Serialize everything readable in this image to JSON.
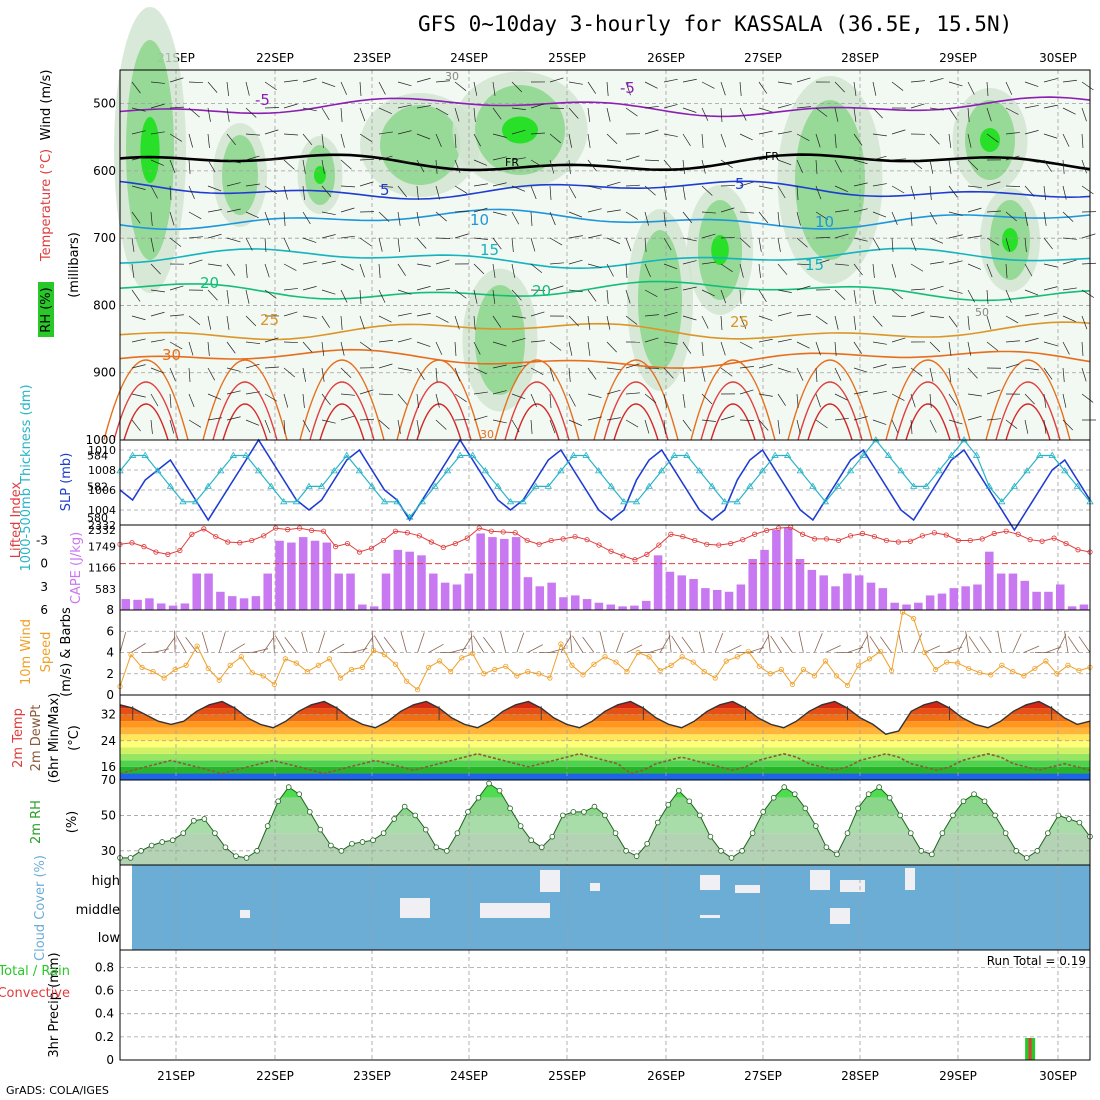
{
  "title": "GFS 0~10day 3-hourly for KASSALA (36.5E, 15.5N)",
  "footer": "GrADS: COLA/IGES",
  "colors": {
    "grid": "#a0a0a0",
    "slp": "#1e3cd2",
    "thickness": "#28b4c8",
    "lifted_index": "#e03c3c",
    "cape": "#c878f0",
    "wind_speed": "#f0a028",
    "barb": "#8c6450",
    "cloud_bg": "#6cadd6",
    "rh_line": "#28a028",
    "precip_total": "#28c828",
    "precip_conv": "#e03c3c"
  },
  "chart_data": [
    {
      "type": "heatmap",
      "id": "upper_air",
      "ylabel_parts": [
        "RH (%)",
        "Temperature (°C)",
        "Wind (m/s)"
      ],
      "ylabel2": "(millibars)",
      "x": [
        "21SEP",
        "22SEP",
        "23SEP",
        "24SEP",
        "25SEP",
        "26SEP",
        "27SEP",
        "28SEP",
        "29SEP",
        "30SEP"
      ],
      "y_ticks": [
        500,
        600,
        700,
        800,
        900,
        1000
      ],
      "ylim": [
        450,
        1000
      ],
      "isotherm_labels": [
        "-5",
        "5",
        "10",
        "15",
        "20",
        "25",
        "30",
        "FR",
        "FR",
        "30",
        "30",
        "50"
      ],
      "isotherms": [
        {
          "label": "-5",
          "level": 505,
          "color": "#8c1eb4"
        },
        {
          "label": "FR",
          "level": 588,
          "color": "#000000"
        },
        {
          "label": "5",
          "level": 628,
          "color": "#1e3cd2"
        },
        {
          "label": "10",
          "level": 672,
          "color": "#1e96dc"
        },
        {
          "label": "15",
          "level": 730,
          "color": "#14b4be"
        },
        {
          "label": "20",
          "level": 778,
          "color": "#14be78"
        },
        {
          "label": "25",
          "level": 838,
          "color": "#dc9628"
        },
        {
          "label": "30",
          "level": 880,
          "color": "#e66e1e"
        }
      ]
    },
    {
      "type": "line",
      "id": "slp_thickness",
      "ylabel": "SLP (mb)",
      "ylabel2": "1000-500mb Thickness (dm)",
      "left_ticks": [
        "584",
        "582",
        "580"
      ],
      "left_lim": [
        579.5,
        585
      ],
      "right_ticks": [
        "1010",
        "1008",
        "1006",
        "1004"
      ],
      "right_lim": [
        1002.5,
        1011
      ],
      "series": [
        {
          "name": "SLP (mb)",
          "values": [
            1006,
            1005,
            1007,
            1008,
            1009,
            1007,
            1005,
            1003,
            1005,
            1007,
            1009,
            1011,
            1009,
            1007,
            1005,
            1004,
            1005,
            1007,
            1009,
            1010,
            1008,
            1006,
            1005,
            1003,
            1005,
            1007,
            1009,
            1011,
            1009,
            1007,
            1005,
            1004,
            1005,
            1007,
            1009,
            1010,
            1008,
            1006,
            1004,
            1003,
            1004,
            1007,
            1009,
            1010,
            1008,
            1006,
            1004,
            1003,
            1004,
            1007,
            1009,
            1010,
            1008,
            1006,
            1004,
            1003,
            1005,
            1007,
            1009,
            1010,
            1008,
            1006,
            1004,
            1003,
            1005,
            1007,
            1009,
            1010,
            1008,
            1006,
            1004,
            1002,
            1004,
            1006,
            1008,
            1009,
            1007,
            1005
          ]
        },
        {
          "name": "Thickness (dm)",
          "values": [
            583,
            584,
            584,
            583,
            582,
            581,
            581,
            582,
            583,
            584,
            584,
            583,
            582,
            581,
            581,
            582,
            582,
            583,
            584,
            583,
            582,
            581,
            581,
            580,
            581,
            582,
            583,
            584,
            584,
            583,
            582,
            581,
            581,
            582,
            582,
            583,
            584,
            584,
            583,
            582,
            581,
            581,
            582,
            583,
            584,
            584,
            583,
            582,
            581,
            581,
            582,
            583,
            584,
            584,
            583,
            582,
            581,
            582,
            583,
            584,
            585,
            584,
            583,
            582,
            582,
            583,
            584,
            585,
            584,
            582,
            581,
            582,
            583,
            584,
            584,
            583,
            582,
            581
          ]
        }
      ]
    },
    {
      "type": "bar",
      "id": "cape_li",
      "ylabel": "CAPE (J/kg)",
      "ylabel2": "Lifted Index",
      "left_ticks": [
        "-3",
        "0",
        "3",
        "6"
      ],
      "left_lim": [
        -5,
        6
      ],
      "right_ticks": [
        "2332",
        "1749",
        "1166",
        "583"
      ],
      "right_lim": [
        0,
        2332
      ],
      "series": [
        {
          "name": "CAPE (J/kg)",
          "values": [
            300,
            280,
            320,
            180,
            120,
            180,
            1000,
            1000,
            500,
            380,
            320,
            380,
            1000,
            1900,
            1850,
            2000,
            1900,
            1850,
            1000,
            1000,
            150,
            100,
            1000,
            1650,
            1600,
            1500,
            1000,
            750,
            700,
            1000,
            2100,
            2000,
            1950,
            2000,
            900,
            650,
            750,
            350,
            400,
            300,
            200,
            150,
            100,
            120,
            250,
            1500,
            1050,
            950,
            850,
            600,
            550,
            500,
            700,
            1400,
            1650,
            2200,
            2250,
            1400,
            1100,
            950,
            650,
            1000,
            950,
            750,
            600,
            200,
            150,
            200,
            400,
            450,
            600,
            650,
            700,
            1600,
            1000,
            1000,
            800,
            500,
            500,
            700,
            100,
            150
          ]
        },
        {
          "name": "Lifted Index",
          "values": [
            -2.5,
            -2.7,
            -2.2,
            -1.5,
            -1.2,
            -1.7,
            -3.8,
            -4.5,
            -3.5,
            -2.8,
            -2.7,
            -3,
            -3.6,
            -4.6,
            -4.4,
            -4.6,
            -4.3,
            -4.2,
            -2.2,
            -2.6,
            -1.5,
            -2,
            -3,
            -4.2,
            -4,
            -3.6,
            -2.8,
            -2.1,
            -2.6,
            -3.3,
            -4.6,
            -4.2,
            -4.1,
            -4,
            -3,
            -2.5,
            -3,
            -3.2,
            -3.5,
            -3.1,
            -2.4,
            -1.6,
            -1,
            -0.5,
            -1.2,
            -2.4,
            -3.8,
            -3.5,
            -3,
            -2.5,
            -2.4,
            -2.6,
            -3.1,
            -3.8,
            -4.3,
            -4.6,
            -4.7,
            -3.8,
            -3.2,
            -3.2,
            -3,
            -3.6,
            -3.9,
            -3.5,
            -3,
            -2.8,
            -2.9,
            -3.6,
            -4,
            -3.7,
            -3,
            -3,
            -3.2,
            -3.9,
            -4.2,
            -3.8,
            -3.1,
            -2.9,
            -3.3,
            -2.6,
            -1.8,
            -1.5
          ]
        }
      ]
    },
    {
      "type": "line",
      "id": "wind10m",
      "ylabel": "10m Wind Speed (m/s) & Barbs",
      "ylim": [
        0,
        8
      ],
      "y_ticks": [
        "8",
        "6",
        "4",
        "2",
        "0"
      ],
      "series": [
        {
          "name": "Speed (m/s)",
          "values": [
            0.8,
            3.8,
            2.6,
            2.2,
            1.6,
            2.4,
            2.8,
            4.6,
            2.5,
            1.4,
            2.8,
            3.6,
            2.1,
            1.8,
            1.0,
            3.4,
            3.0,
            2.2,
            2.8,
            3.4,
            1.6,
            2.4,
            2.6,
            4.2,
            3.8,
            2.9,
            1.3,
            0.5,
            2.6,
            3.2,
            2.2,
            3.5,
            3.9,
            2.0,
            2.4,
            2.7,
            1.8,
            2.2,
            2.0,
            1.6,
            4.8,
            2.8,
            1.9,
            2.9,
            3.6,
            3.1,
            2.2,
            4.0,
            3.6,
            2.3,
            2.8,
            3.6,
            3.1,
            2.2,
            1.6,
            3.2,
            3.6,
            4.1,
            2.7,
            2.0,
            2.4,
            1.0,
            2.4,
            1.8,
            3.2,
            1.8,
            0.9,
            2.8,
            3.4,
            4.1,
            2.3,
            7.8,
            7.2,
            4.0,
            2.4,
            3.1,
            3.0,
            2.5,
            2.1,
            1.9,
            2.8,
            2.2,
            1.8,
            2.5,
            3.2,
            2.0,
            2.8,
            2.3,
            2.6
          ]
        }
      ]
    },
    {
      "type": "area",
      "id": "temp2m",
      "ylabel": "2m Temp 2m DewPt (6hr Min/Max) (°C)",
      "ylim": [
        12,
        38
      ],
      "y_ticks": [
        "32",
        "24",
        "16"
      ],
      "series": [
        {
          "name": "2m Temp (°C)",
          "values": [
            35,
            34,
            32,
            30,
            29,
            30,
            33,
            35,
            36,
            34,
            31,
            29,
            28,
            30,
            33,
            35,
            36,
            34,
            31,
            29,
            28,
            30,
            33,
            35,
            36,
            34,
            31,
            29,
            28,
            30,
            33,
            35,
            36,
            34,
            31,
            29,
            28,
            30,
            33,
            35,
            36,
            34,
            31,
            29,
            28,
            30,
            33,
            35,
            36,
            34,
            31,
            29,
            28,
            30,
            33,
            35,
            36,
            34,
            31,
            29,
            26,
            27,
            33,
            35,
            36,
            34,
            31,
            29,
            28,
            30,
            33,
            35,
            36,
            34,
            31,
            29,
            30
          ]
        },
        {
          "name": "2m DewPt (°C)",
          "values": [
            14,
            15,
            16,
            17,
            18,
            17,
            16,
            15,
            14,
            15,
            16,
            17,
            18,
            17,
            16,
            15,
            14,
            15,
            16,
            17,
            18,
            17,
            16,
            15,
            16,
            17,
            18,
            19,
            20,
            19,
            18,
            17,
            16,
            17,
            18,
            19,
            20,
            19,
            18,
            17,
            14,
            15,
            17,
            18,
            19,
            18,
            17,
            16,
            15,
            16,
            18,
            19,
            20,
            19,
            17,
            16,
            15,
            16,
            18,
            19,
            20,
            19,
            17,
            16,
            15,
            16,
            18,
            19,
            20,
            19,
            17,
            16,
            15,
            16,
            17,
            16,
            15
          ]
        }
      ]
    },
    {
      "type": "area",
      "id": "rh2m",
      "ylabel": "2m RH (%)",
      "ylim": [
        22,
        70
      ],
      "y_ticks": [
        "70",
        "50",
        "30"
      ],
      "series": [
        {
          "name": "2m RH (%)",
          "values": [
            26,
            26,
            30,
            33,
            35,
            36,
            40,
            47,
            48,
            40,
            32,
            27,
            26,
            30,
            44,
            58,
            66,
            62,
            52,
            42,
            33,
            30,
            34,
            35,
            36,
            40,
            48,
            55,
            50,
            42,
            32,
            30,
            40,
            52,
            60,
            68,
            64,
            54,
            44,
            36,
            32,
            38,
            50,
            52,
            52,
            55,
            50,
            40,
            30,
            27,
            34,
            46,
            56,
            64,
            58,
            50,
            38,
            30,
            26,
            30,
            40,
            52,
            60,
            66,
            62,
            54,
            44,
            32,
            28,
            40,
            54,
            62,
            66,
            60,
            50,
            40,
            30,
            28,
            40,
            50,
            58,
            62,
            58,
            50,
            40,
            30,
            26,
            30,
            40,
            50,
            48,
            46,
            38
          ]
        }
      ]
    },
    {
      "type": "heatmap",
      "id": "cloud",
      "ylabel": "Cloud Cover (%)",
      "y_ticks": [
        "high",
        "middle",
        "low"
      ]
    },
    {
      "type": "bar",
      "id": "precip",
      "ylabel": "3hr Precip (mm)",
      "ylabel_alt": [
        "Total / Rain",
        "Convective"
      ],
      "ylim": [
        0,
        0.95
      ],
      "y_ticks": [
        "0.8",
        "0.6",
        "0.4",
        "0.2",
        "0"
      ],
      "annotation": "Run Total = 0.19",
      "x": [
        "21SEP",
        "22SEP",
        "23SEP",
        "24SEP",
        "25SEP",
        "26SEP",
        "27SEP",
        "28SEP",
        "29SEP",
        "30SEP"
      ],
      "series": [
        {
          "name": "Total / Rain",
          "values": [
            {
              "t": 76,
              "v": 0.19
            }
          ]
        },
        {
          "name": "Convective",
          "values": [
            {
              "t": 76,
              "v": 0.19
            }
          ]
        }
      ]
    }
  ]
}
